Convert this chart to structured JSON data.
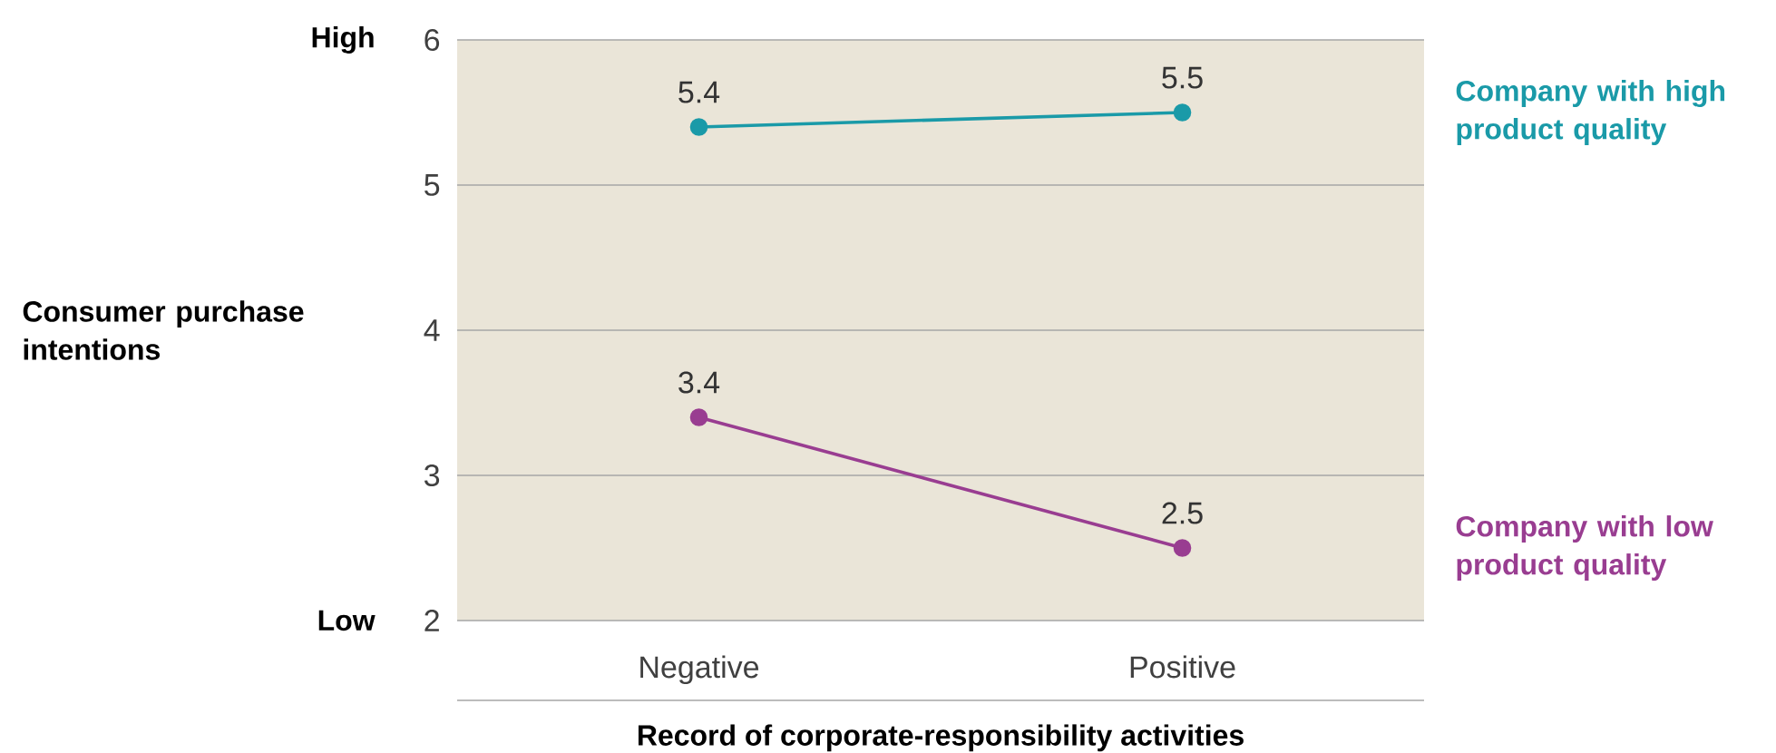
{
  "chart_data": {
    "type": "line",
    "xlabel": "Record of corporate-responsibility activities",
    "ylabel": "Consumer purchase intentions",
    "categories": [
      "Negative",
      "Positive"
    ],
    "series": [
      {
        "name": "Company with high product quality",
        "color": "#1a9aa8",
        "values": [
          5.4,
          5.5
        ]
      },
      {
        "name": "Company with low product quality",
        "color": "#993d91",
        "values": [
          3.4,
          2.5
        ]
      }
    ],
    "ylim": [
      2,
      6
    ],
    "yticks": [
      2,
      3,
      4,
      5,
      6
    ],
    "grid": "y",
    "marker": "circle",
    "data_labels": true,
    "annotations": [
      "High",
      "Low"
    ]
  }
}
